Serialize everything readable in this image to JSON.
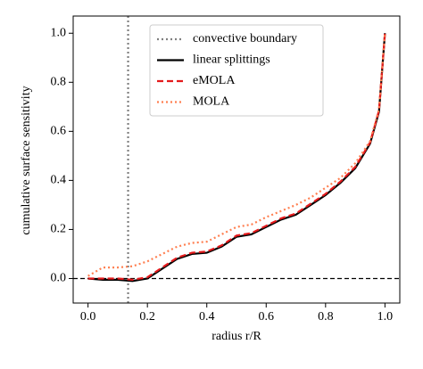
{
  "chart_data": {
    "type": "line",
    "xlabel": "radius r/R",
    "ylabel": "cumulative surface sensitivity",
    "xlim": [
      -0.05,
      1.05
    ],
    "ylim": [
      -0.1,
      1.07
    ],
    "xticks": [
      {
        "value": 0,
        "label": "0.0"
      },
      {
        "value": 0.2,
        "label": "0.2"
      },
      {
        "value": 0.4,
        "label": "0.4"
      },
      {
        "value": 0.6,
        "label": "0.6"
      },
      {
        "value": 0.8,
        "label": "0.8"
      },
      {
        "value": 1,
        "label": "1.0"
      }
    ],
    "yticks": [
      {
        "value": 0,
        "label": "0.0"
      },
      {
        "value": 0.2,
        "label": "0.2"
      },
      {
        "value": 0.4,
        "label": "0.4"
      },
      {
        "value": 0.6,
        "label": "0.6"
      },
      {
        "value": 0.8,
        "label": "0.8"
      },
      {
        "value": 1,
        "label": "1.0"
      }
    ],
    "vline": {
      "name": "convective boundary",
      "x": 0.135,
      "color": "#808080",
      "linestyle": "dotted"
    },
    "hline": {
      "y": 0,
      "color": "#000000",
      "linestyle": "dashed"
    },
    "x": [
      0,
      0.05,
      0.1,
      0.15,
      0.2,
      0.25,
      0.3,
      0.35,
      0.4,
      0.45,
      0.5,
      0.55,
      0.6,
      0.65,
      0.7,
      0.75,
      0.8,
      0.85,
      0.9,
      0.95,
      0.98,
      1.0
    ],
    "series": [
      {
        "name": "linear splittings",
        "color": "#000000",
        "linestyle": "solid",
        "values": [
          0,
          -0.005,
          -0.005,
          -0.01,
          0,
          0.04,
          0.08,
          0.1,
          0.105,
          0.13,
          0.17,
          0.18,
          0.21,
          0.24,
          0.26,
          0.3,
          0.34,
          0.39,
          0.45,
          0.55,
          0.68,
          1.0
        ]
      },
      {
        "name": "eMOLA",
        "color": "#e41a1c",
        "linestyle": "dashed",
        "values": [
          0,
          0,
          0,
          -0.005,
          0.005,
          0.045,
          0.085,
          0.105,
          0.11,
          0.135,
          0.175,
          0.185,
          0.215,
          0.245,
          0.265,
          0.305,
          0.345,
          0.395,
          0.455,
          0.555,
          0.685,
          1.0
        ]
      },
      {
        "name": "MOLA",
        "color": "#ff7f50",
        "linestyle": "dotted",
        "values": [
          0.01,
          0.045,
          0.045,
          0.05,
          0.07,
          0.1,
          0.13,
          0.145,
          0.15,
          0.18,
          0.21,
          0.22,
          0.25,
          0.275,
          0.3,
          0.33,
          0.37,
          0.41,
          0.47,
          0.56,
          0.69,
          1.0
        ]
      }
    ]
  }
}
